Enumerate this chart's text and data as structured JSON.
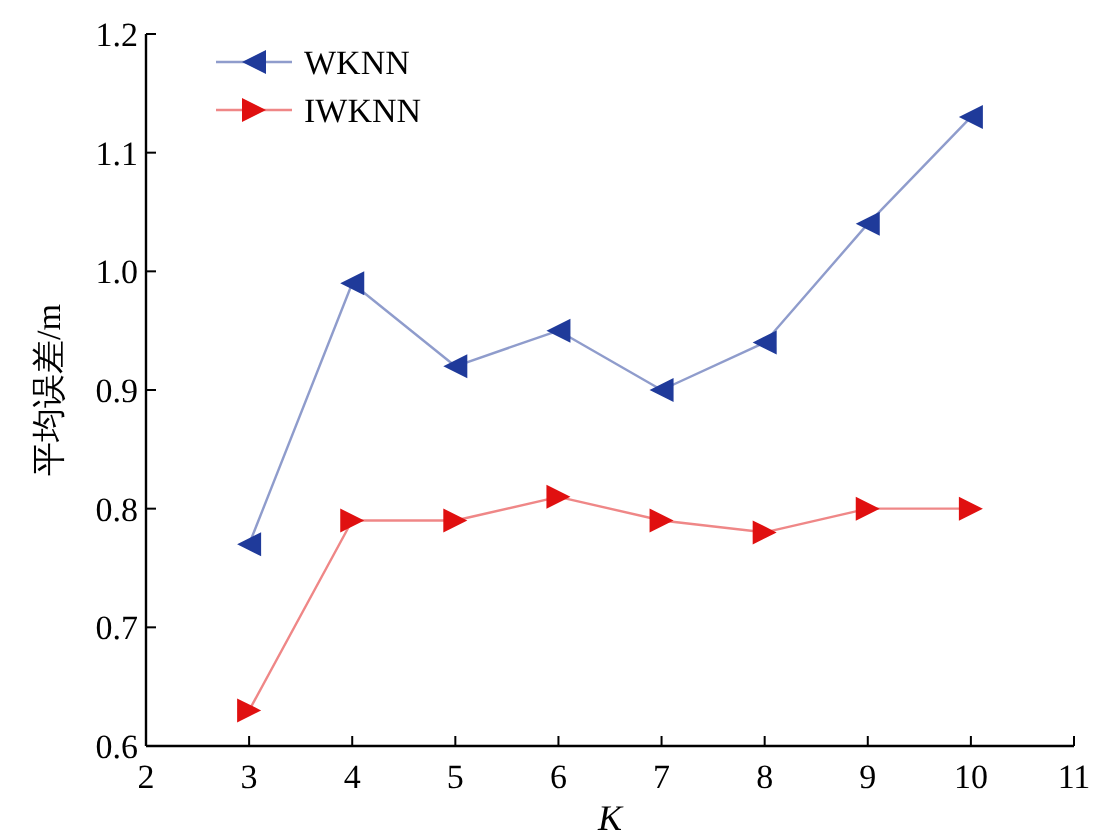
{
  "chart_data": {
    "type": "line",
    "xlabel": "K",
    "ylabel": "平均误差/m",
    "x": [
      3,
      4,
      5,
      6,
      7,
      8,
      9,
      10
    ],
    "series": [
      {
        "name": "WKNN",
        "color": "#1f3a9a",
        "values": [
          0.77,
          0.99,
          0.92,
          0.95,
          0.9,
          0.94,
          1.04,
          1.13
        ]
      },
      {
        "name": "IWKNN",
        "color": "#e01010",
        "values": [
          0.63,
          0.79,
          0.79,
          0.81,
          0.79,
          0.78,
          0.8,
          0.8
        ]
      }
    ],
    "xlim": [
      2,
      11
    ],
    "xticks": [
      2,
      3,
      4,
      5,
      6,
      7,
      8,
      9,
      10,
      11
    ],
    "ylim": [
      0.6,
      1.2
    ],
    "yticks": [
      0.6,
      0.7,
      0.8,
      0.9,
      {
        "value": 1,
        "label": "1.0"
      },
      1.1,
      1.2
    ],
    "legend": "top left",
    "marker": "triangle",
    "grid": false
  }
}
